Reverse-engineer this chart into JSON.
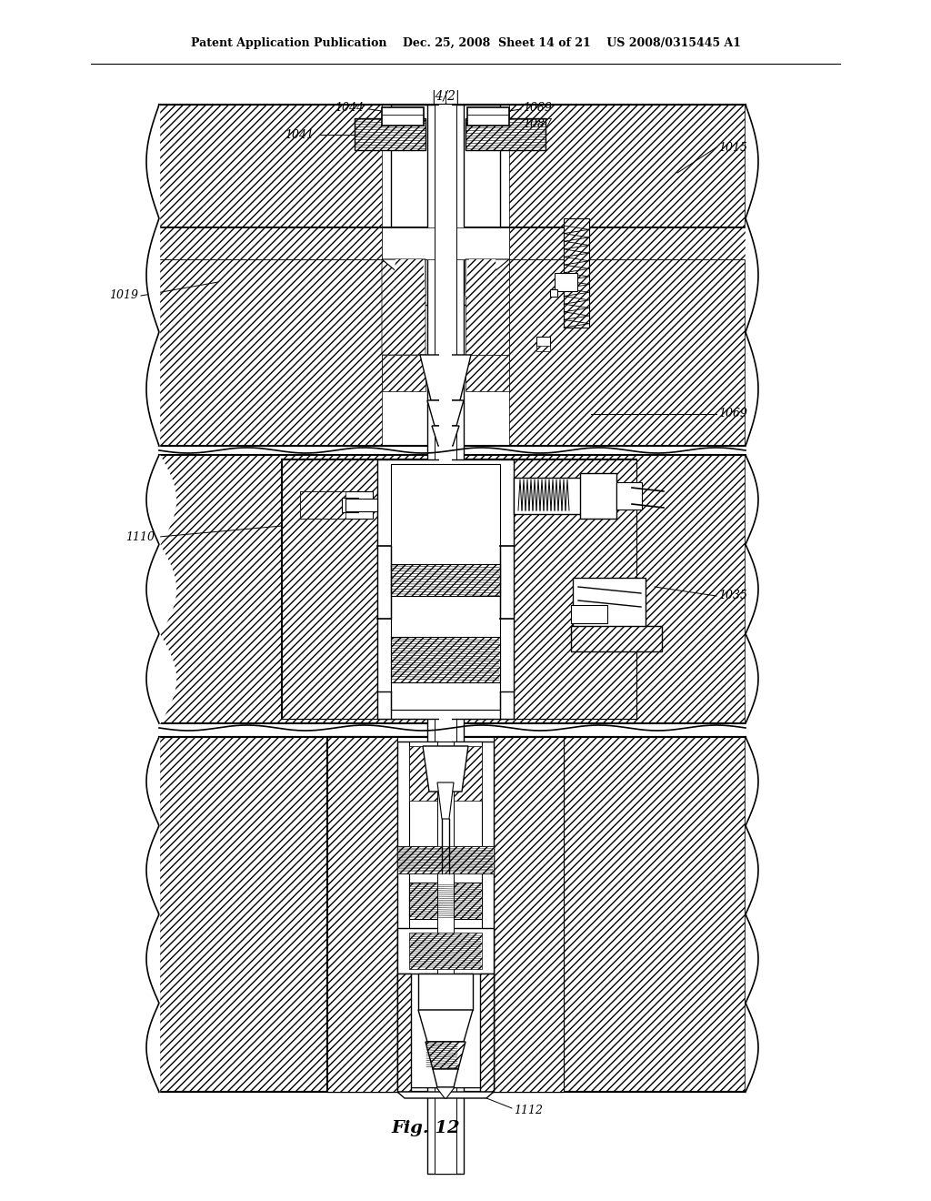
{
  "bg_color": "#ffffff",
  "header": "Patent Application Publication    Dec. 25, 2008  Sheet 14 of 21    US 2008/0315445 A1",
  "fig_label": "Fig. 12",
  "label_1044": "1044",
  "label_1421": "|4/2|",
  "label_1089": "1089",
  "label_1041": "1041",
  "label_1087": "1087",
  "label_1015": "1015",
  "label_1019": "1019",
  "label_1069": "1069",
  "label_1110": "1110",
  "label_1035": "1035",
  "label_1112": "1112",
  "hatch": "////",
  "lw_thick": 1.5,
  "lw_med": 1.0,
  "lw_thin": 0.6
}
